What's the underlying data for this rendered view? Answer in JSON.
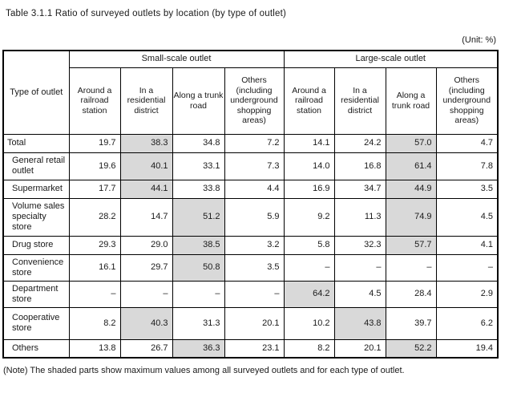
{
  "page": {
    "title": "Table 3.1.1 Ratio of surveyed outlets by location (by type of outlet)",
    "unit_label": "(Unit: %)",
    "note": "(Note) The shaded parts show maximum values among all surveyed outlets and for each type of outlet."
  },
  "colors": {
    "shaded_cell": "#d9d9d9",
    "border": "#000000",
    "text": "#1a1a1a",
    "background": "#ffffff"
  },
  "table": {
    "corner_header": "Type of outlet",
    "groups": [
      {
        "label": "Small-scale outlet",
        "columns": [
          "Around a railroad station",
          "In a residential district",
          "Along a trunk road",
          "Others (including underground shopping areas)"
        ]
      },
      {
        "label": "Large-scale outlet",
        "columns": [
          "Around a railroad station",
          "In a residential district",
          "Along a trunk road",
          "Others (including underground shopping areas)"
        ]
      }
    ],
    "rows": [
      {
        "label": "Total",
        "values": [
          "19.7",
          "38.3",
          "34.8",
          "7.2",
          "14.1",
          "24.2",
          "57.0",
          "4.7"
        ],
        "shaded": [
          1,
          6
        ]
      },
      {
        "label": "General retail outlet",
        "values": [
          "19.6",
          "40.1",
          "33.1",
          "7.3",
          "14.0",
          "16.8",
          "61.4",
          "7.8"
        ],
        "shaded": [
          1,
          6
        ]
      },
      {
        "label": "Supermarket",
        "values": [
          "17.7",
          "44.1",
          "33.8",
          "4.4",
          "16.9",
          "34.7",
          "44.9",
          "3.5"
        ],
        "shaded": [
          1,
          6
        ]
      },
      {
        "label": "Volume sales specialty store",
        "values": [
          "28.2",
          "14.7",
          "51.2",
          "5.9",
          "9.2",
          "11.3",
          "74.9",
          "4.5"
        ],
        "shaded": [
          2,
          6
        ]
      },
      {
        "label": "Drug store",
        "values": [
          "29.3",
          "29.0",
          "38.5",
          "3.2",
          "5.8",
          "32.3",
          "57.7",
          "4.1"
        ],
        "shaded": [
          2,
          6
        ]
      },
      {
        "label": "Convenience store",
        "values": [
          "16.1",
          "29.7",
          "50.8",
          "3.5",
          "–",
          "–",
          "–",
          "–"
        ],
        "shaded": [
          2
        ]
      },
      {
        "label": "Department store",
        "values": [
          "–",
          "–",
          "–",
          "–",
          "64.2",
          "4.5",
          "28.4",
          "2.9"
        ],
        "shaded": [
          4
        ]
      },
      {
        "label": "Cooperative store",
        "values": [
          "8.2",
          "40.3",
          "31.3",
          "20.1",
          "10.2",
          "43.8",
          "39.7",
          "6.2"
        ],
        "shaded": [
          1,
          5
        ]
      },
      {
        "label": "Others",
        "values": [
          "13.8",
          "26.7",
          "36.3",
          "23.1",
          "8.2",
          "20.1",
          "52.2",
          "19.4"
        ],
        "shaded": [
          2,
          6
        ]
      }
    ]
  }
}
